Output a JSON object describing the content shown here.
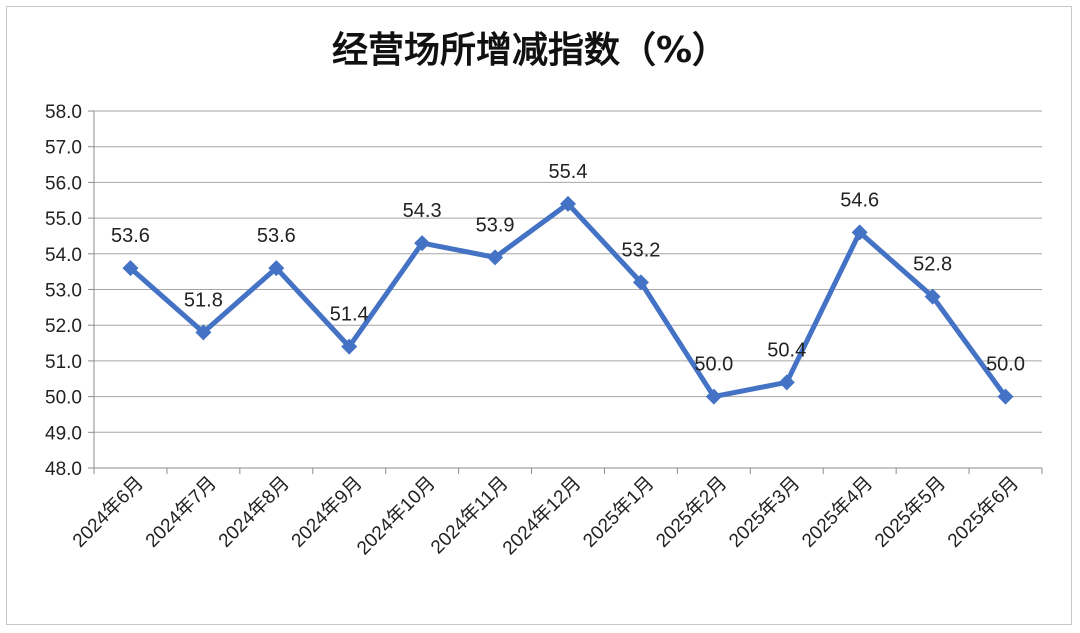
{
  "chart_data": {
    "type": "line",
    "title": "经营场所增减指数（%）",
    "categories": [
      "2024年6月",
      "2024年7月",
      "2024年8月",
      "2024年9月",
      "2024年10月",
      "2024年11月",
      "2024年12月",
      "2025年1月",
      "2025年2月",
      "2025年3月",
      "2025年4月",
      "2025年5月",
      "2025年6月"
    ],
    "series": [
      {
        "values": [
          53.6,
          51.8,
          53.6,
          51.4,
          54.3,
          53.9,
          55.4,
          53.2,
          50.0,
          50.4,
          54.6,
          52.8,
          50.0
        ]
      }
    ],
    "data_labels": [
      "53.6",
      "51.8",
      "53.6",
      "51.4",
      "54.3",
      "53.9",
      "55.4",
      "53.2",
      "50.0",
      "50.4",
      "54.6",
      "52.8",
      "50.0"
    ],
    "y_ticks": [
      "48.0",
      "49.0",
      "50.0",
      "51.0",
      "52.0",
      "53.0",
      "54.0",
      "55.0",
      "56.0",
      "57.0",
      "58.0"
    ],
    "ylim": [
      48.0,
      58.0
    ],
    "xlabel": "",
    "ylabel": "",
    "grid": true,
    "legend": "none",
    "colors": {
      "line": "#4472c4",
      "grid": "#a6a6a6",
      "axis": "#8c8c8c"
    },
    "marker": "diamond"
  }
}
